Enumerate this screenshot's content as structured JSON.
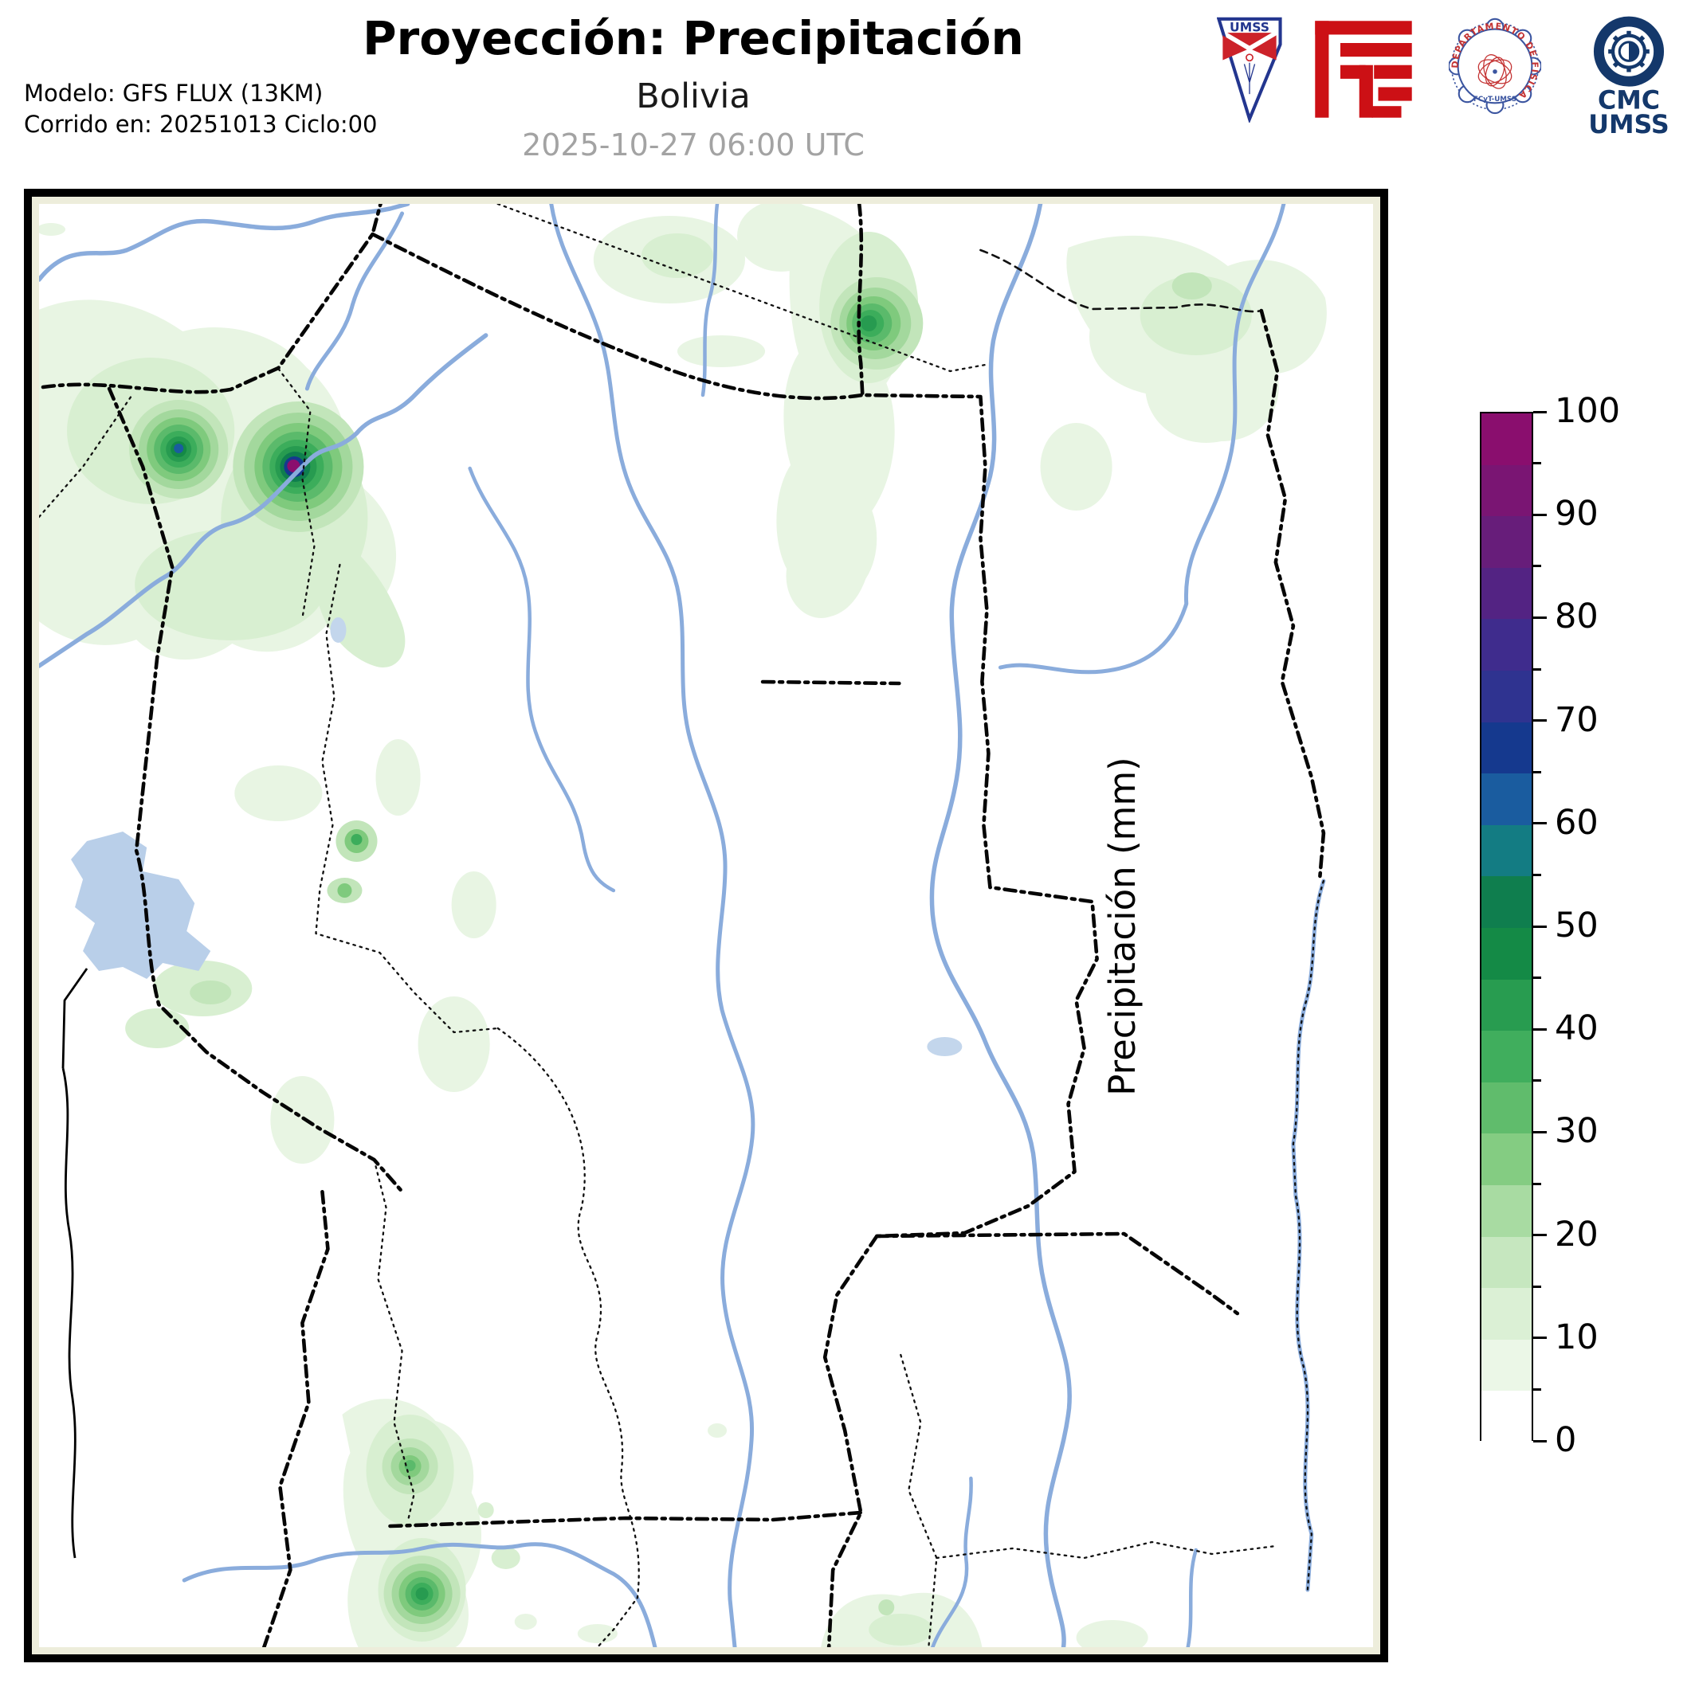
{
  "header": {
    "title": "Proyección: Precipitación",
    "subtitle": "Bolivia",
    "valid_time": "2025-10-27 06:00 UTC",
    "model": "Modelo: GFS FLUX (13KM)",
    "run": "Corrido en: 20251013 Ciclo:00"
  },
  "logos": {
    "umss_label": "UMSS",
    "fisica_seal_text": "DEPARTAMENTO DE FÍSICA",
    "fisica_seal_subtext": "FCyT-UMSS",
    "cmc_line1": "CMC",
    "cmc_line2": "UMSS"
  },
  "colorbar": {
    "label": "Precipitación (mm)",
    "min": 0,
    "max": 100,
    "step": 5,
    "major_ticks": [
      0,
      10,
      20,
      30,
      40,
      50,
      60,
      70,
      80,
      90,
      100
    ],
    "colors_low_to_high": [
      "#ffffff",
      "#ebf7e7",
      "#dbf0d5",
      "#c6e7bf",
      "#a8dba2",
      "#84cc82",
      "#60bc6c",
      "#40ae5d",
      "#289c50",
      "#148a46",
      "#0f7e4e",
      "#137c83",
      "#1a5c9f",
      "#15398e",
      "#2f3390",
      "#3f2c8d",
      "#532383",
      "#671d7a",
      "#7a1573",
      "#8a0e6e"
    ]
  },
  "map": {
    "region": "Bolivia",
    "precip_cells": [
      {
        "location": "northwest cell",
        "peak_mm": 65
      },
      {
        "location": "northwest cell on river",
        "peak_mm": 100
      },
      {
        "location": "north-central cell",
        "peak_mm": 45
      },
      {
        "location": "west-central cells",
        "peak_mm": 35
      },
      {
        "location": "south-central upper cell",
        "peak_mm": 30
      },
      {
        "location": "south-central lower cell",
        "peak_mm": 45
      }
    ]
  }
}
